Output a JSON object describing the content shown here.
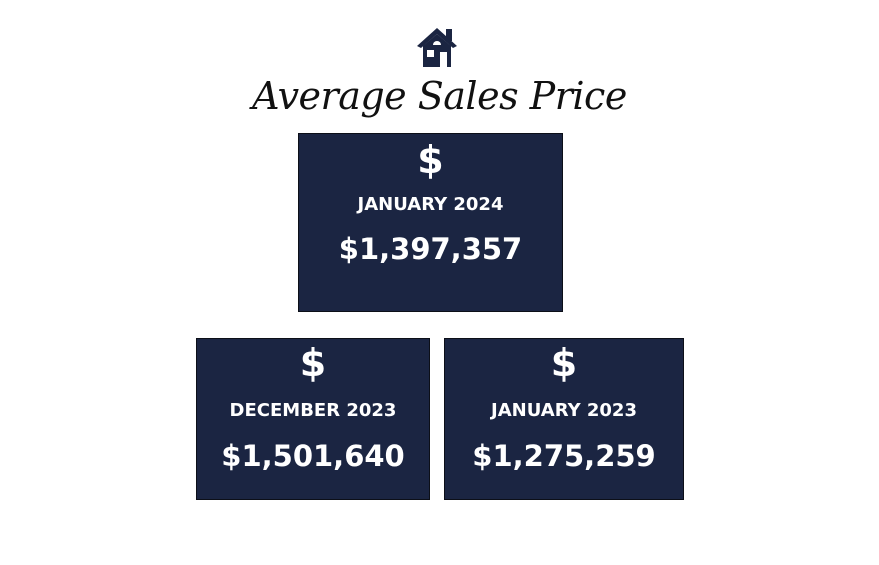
{
  "header": {
    "title": "Average Sales Price"
  },
  "cards": [
    {
      "icon": "$",
      "period": "JANUARY 2024",
      "value": "$1,397,357"
    },
    {
      "icon": "$",
      "period": "DECEMBER 2023",
      "value": "$1,501,640"
    },
    {
      "icon": "$",
      "period": "JANUARY 2023",
      "value": "$1,275,259"
    }
  ]
}
